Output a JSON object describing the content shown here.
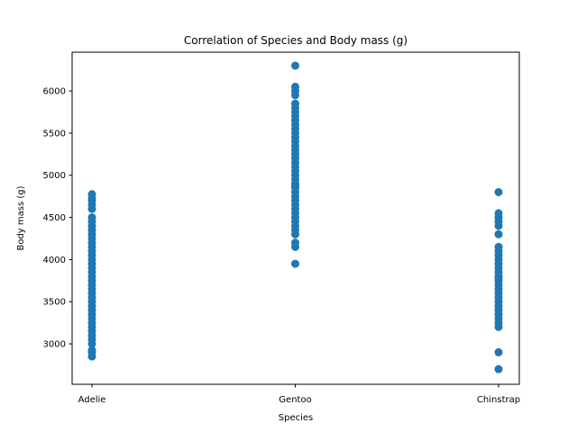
{
  "chart_data": {
    "type": "scatter",
    "title": "Correlation of Species and Body mass (g)",
    "xlabel": "Species",
    "ylabel": "Body mass (g)",
    "categories": [
      "Adelie",
      "Gentoo",
      "Chinstrap"
    ],
    "ylim": [
      2520,
      6460
    ],
    "yticks": [
      3000,
      3500,
      4000,
      4500,
      5000,
      5500,
      6000
    ],
    "grid": false,
    "marker_color": "#1f77b4",
    "series": [
      {
        "category": "Adelie",
        "values": [
          2850,
          2900,
          2925,
          3000,
          3050,
          3100,
          3150,
          3200,
          3250,
          3300,
          3350,
          3400,
          3450,
          3500,
          3550,
          3600,
          3650,
          3700,
          3750,
          3800,
          3850,
          3900,
          3950,
          4000,
          4050,
          4100,
          4150,
          4200,
          4250,
          4300,
          4350,
          4400,
          4450,
          4500,
          4600,
          4650,
          4700,
          4725,
          4775
        ]
      },
      {
        "category": "Gentoo",
        "values": [
          3950,
          4150,
          4200,
          4300,
          4350,
          4400,
          4450,
          4500,
          4550,
          4600,
          4650,
          4700,
          4750,
          4800,
          4850,
          4875,
          4900,
          4950,
          5000,
          5050,
          5100,
          5150,
          5200,
          5250,
          5300,
          5350,
          5400,
          5450,
          5500,
          5550,
          5600,
          5650,
          5700,
          5750,
          5800,
          5850,
          5950,
          6000,
          6050,
          6300
        ]
      },
      {
        "category": "Chinstrap",
        "values": [
          2700,
          2900,
          3200,
          3250,
          3300,
          3350,
          3400,
          3450,
          3500,
          3550,
          3600,
          3650,
          3700,
          3750,
          3775,
          3800,
          3850,
          3900,
          3950,
          4000,
          4050,
          4100,
          4150,
          4300,
          4400,
          4450,
          4500,
          4550,
          4800
        ]
      }
    ]
  }
}
